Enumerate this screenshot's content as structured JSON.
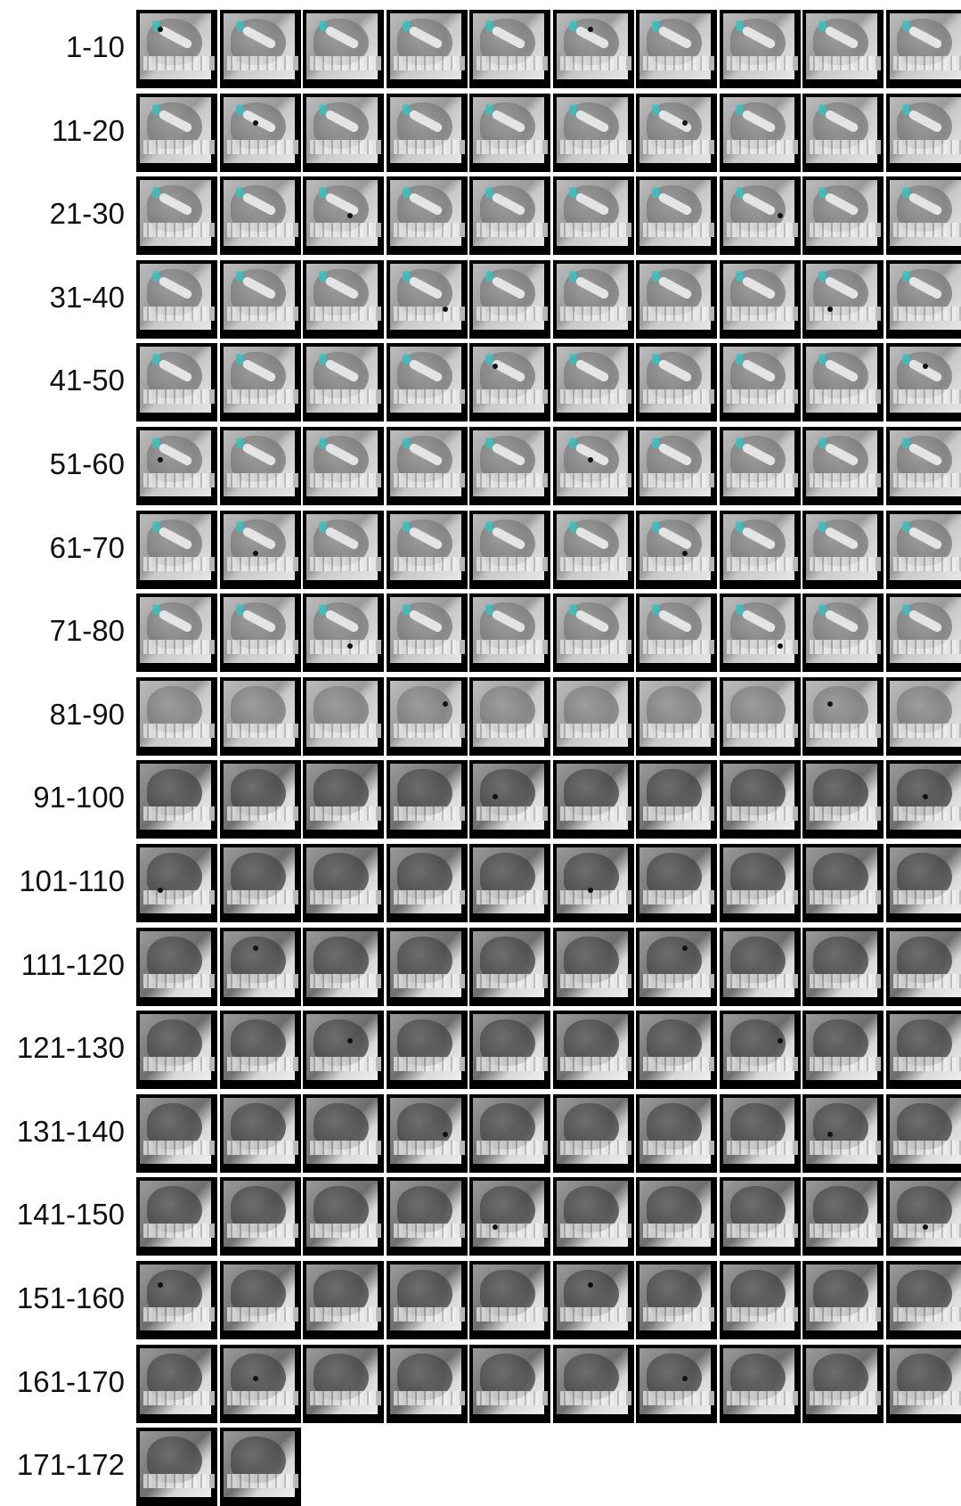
{
  "row_labels": [
    "1-10",
    "11-20",
    "21-30",
    "31-40",
    "41-50",
    "51-60",
    "61-70",
    "71-80",
    "81-90",
    "91-100",
    "101-110",
    "111-120",
    "121-130",
    "131-140",
    "141-150",
    "151-160",
    "161-170",
    "171-172"
  ],
  "tiles_per_row": [
    10,
    10,
    10,
    10,
    10,
    10,
    10,
    10,
    10,
    10,
    10,
    10,
    10,
    10,
    10,
    10,
    10,
    2
  ],
  "colors": {
    "background": "#ffffff",
    "tile_frame": "#000000",
    "cyan_annotation": "#2ec6c6",
    "label_text": "#111111"
  }
}
